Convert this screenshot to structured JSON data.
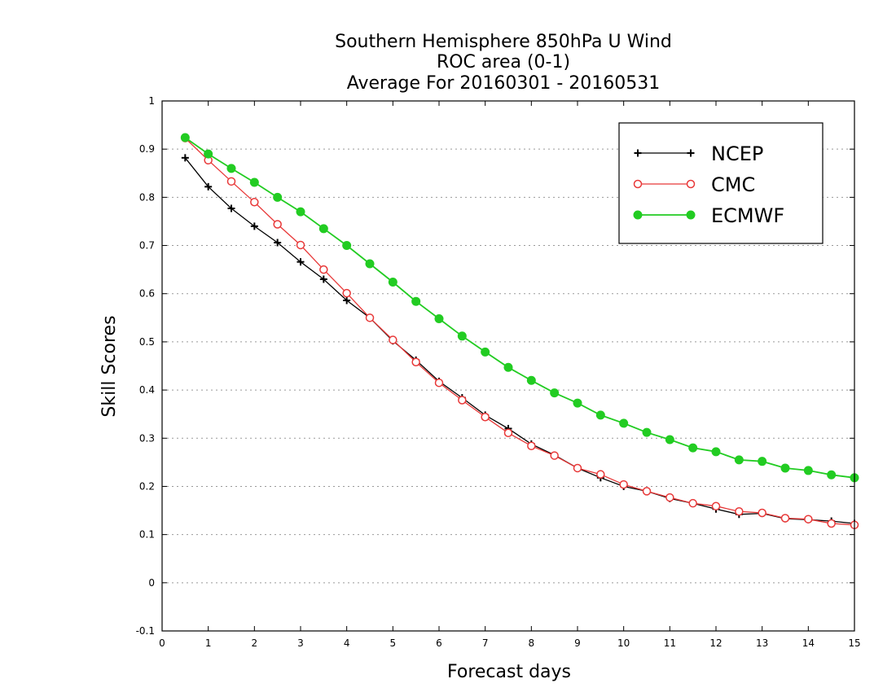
{
  "chart_data": {
    "type": "line",
    "title_lines": [
      "Southern Hemisphere 850hPa U Wind",
      "ROC area (0-1)",
      "Average For 20160301 - 20160531"
    ],
    "xlabel": "Forecast days",
    "ylabel": "Skill Scores",
    "xlim": [
      0,
      15
    ],
    "ylim": [
      -0.1,
      1
    ],
    "xticks": [
      0,
      1,
      2,
      3,
      4,
      5,
      6,
      7,
      8,
      9,
      10,
      11,
      12,
      13,
      14,
      15
    ],
    "yticks": [
      -0.1,
      0,
      0.1,
      0.2,
      0.3,
      0.4,
      0.5,
      0.6,
      0.7,
      0.8,
      0.9,
      1
    ],
    "ytick_labels": [
      "-0.1",
      "0",
      "0.1",
      "0.2",
      "0.3",
      "0.4",
      "0.5",
      "0.6",
      "0.7",
      "0.8",
      "0.9",
      "1"
    ],
    "grid": "horizontal dotted",
    "legend_position": "top-right",
    "x": [
      0.5,
      1,
      1.5,
      2,
      2.5,
      3,
      3.5,
      4,
      4.5,
      5,
      5.5,
      6,
      6.5,
      7,
      7.5,
      8,
      8.5,
      9,
      9.5,
      10,
      10.5,
      11,
      11.5,
      12,
      12.5,
      13,
      13.5,
      14,
      14.5,
      15
    ],
    "series": [
      {
        "name": "NCEP",
        "color": "#000000",
        "marker": "plus",
        "values": [
          0.882,
          0.822,
          0.777,
          0.74,
          0.706,
          0.666,
          0.63,
          0.586,
          0.55,
          0.502,
          0.462,
          0.418,
          0.384,
          0.348,
          0.32,
          0.288,
          0.265,
          0.238,
          0.218,
          0.2,
          0.19,
          0.175,
          0.165,
          0.153,
          0.142,
          0.144,
          0.133,
          0.131,
          0.128,
          0.123
        ]
      },
      {
        "name": "CMC",
        "color": "#e83838",
        "marker": "open-circle",
        "values": [
          0.923,
          0.877,
          0.833,
          0.79,
          0.744,
          0.701,
          0.65,
          0.601,
          0.55,
          0.504,
          0.458,
          0.415,
          0.379,
          0.344,
          0.311,
          0.284,
          0.264,
          0.238,
          0.225,
          0.204,
          0.19,
          0.177,
          0.165,
          0.159,
          0.148,
          0.145,
          0.134,
          0.132,
          0.123,
          0.12
        ]
      },
      {
        "name": "ECMWF",
        "color": "#22cc22",
        "marker": "filled-circle",
        "values": [
          0.924,
          0.89,
          0.86,
          0.831,
          0.8,
          0.77,
          0.735,
          0.7,
          0.662,
          0.624,
          0.584,
          0.548,
          0.512,
          0.479,
          0.447,
          0.42,
          0.394,
          0.373,
          0.348,
          0.331,
          0.312,
          0.297,
          0.28,
          0.272,
          0.255,
          0.252,
          0.238,
          0.233,
          0.224,
          0.218
        ]
      }
    ]
  }
}
